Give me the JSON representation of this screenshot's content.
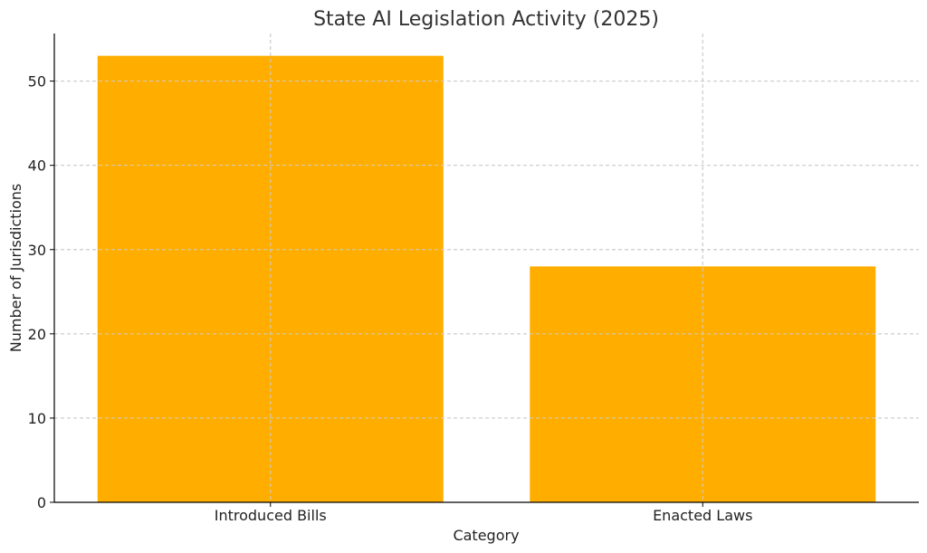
{
  "chart_data": {
    "type": "bar",
    "title": "State AI Legislation Activity (2025)",
    "xlabel": "Category",
    "ylabel": "Number of Jurisdictions",
    "categories": [
      "Introduced Bills",
      "Enacted Laws"
    ],
    "values": [
      53,
      28
    ],
    "ylim": [
      0,
      55.65
    ],
    "yticks": [
      0,
      10,
      20,
      30,
      40,
      50
    ],
    "bar_color": "#FFAE00",
    "grid": true,
    "legend": "none"
  }
}
